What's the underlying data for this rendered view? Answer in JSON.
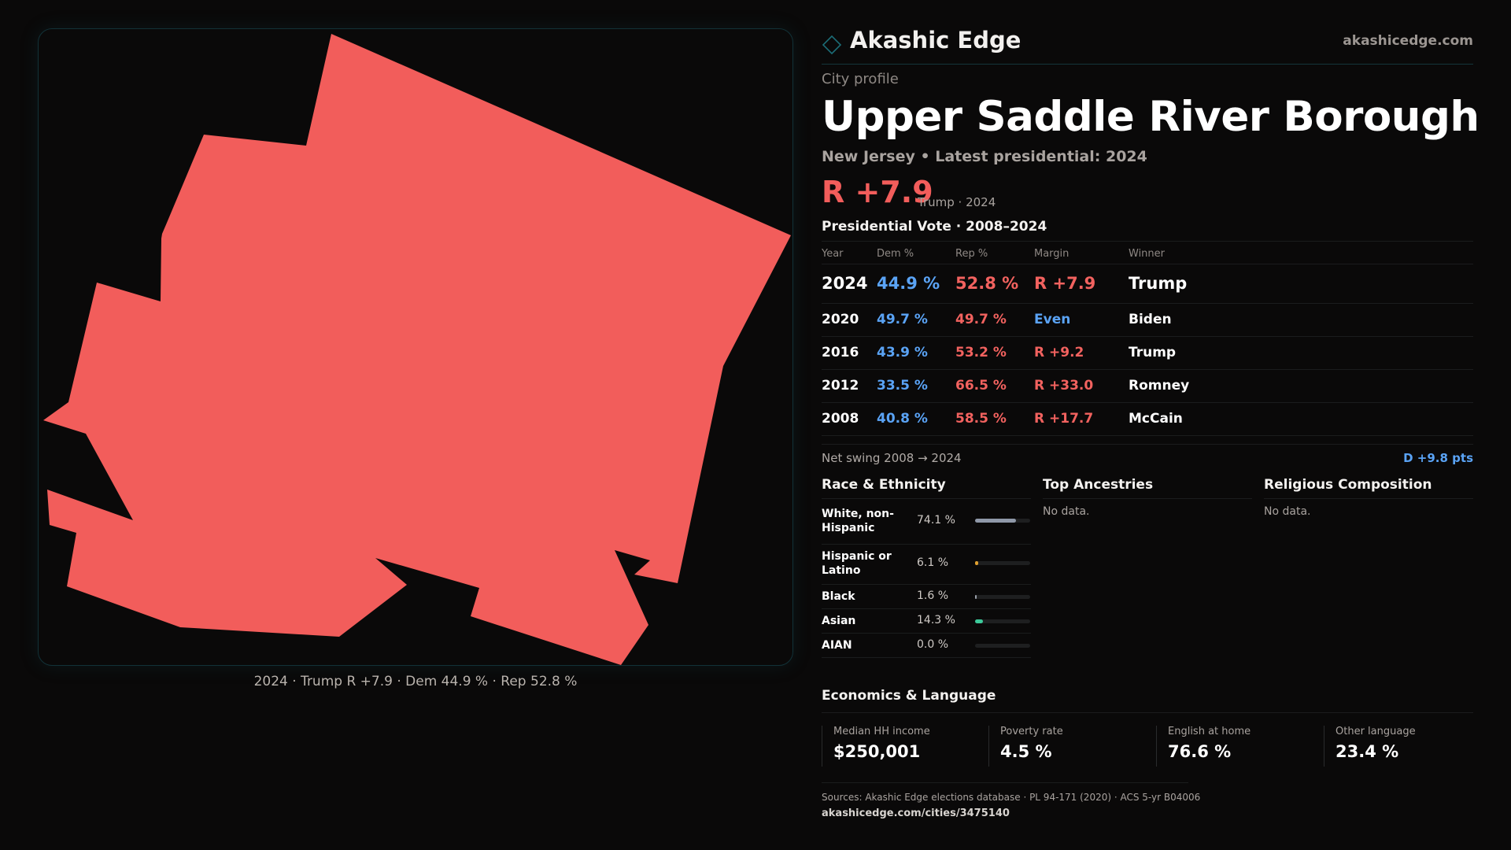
{
  "brand": {
    "name": "Akashic Edge",
    "site": "akashicedge.com",
    "logo_icon": "diamond-outline-icon"
  },
  "profile": {
    "kicker": "City profile",
    "city": "Upper Saddle River Borough",
    "subline": "New Jersey • Latest presidential: 2024",
    "margin": "R +7.9",
    "margin_note": "Trump · 2024"
  },
  "map": {
    "fill_color": "#f25d5b",
    "caption": "2024 · Trump R +7.9 · Dem 44.9 % · Rep 52.8 %"
  },
  "presidential": {
    "heading": "Presidential Vote · 2008–2024",
    "columns": [
      "Year",
      "Dem %",
      "Rep %",
      "Margin",
      "Winner"
    ],
    "rows": [
      {
        "year": "2024",
        "dem": "44.9 %",
        "rep": "52.8 %",
        "margin": "R +7.9",
        "winner": "Trump"
      },
      {
        "year": "2020",
        "dem": "49.7 %",
        "rep": "49.7 %",
        "margin": "Even",
        "winner": "Biden"
      },
      {
        "year": "2016",
        "dem": "43.9 %",
        "rep": "53.2 %",
        "margin": "R +9.2",
        "winner": "Trump"
      },
      {
        "year": "2012",
        "dem": "33.5 %",
        "rep": "66.5 %",
        "margin": "R +33.0",
        "winner": "Romney"
      },
      {
        "year": "2008",
        "dem": "40.8 %",
        "rep": "58.5 %",
        "margin": "R +17.7",
        "winner": "McCain"
      }
    ],
    "swing_label": "Net swing 2008 → 2024",
    "swing_value": "D +9.8 pts"
  },
  "race": {
    "heading": "Race & Ethnicity",
    "rows": [
      {
        "label": "White, non-Hispanic",
        "value": "74.1 %",
        "pct": 74.1,
        "color": "#8f98a8"
      },
      {
        "label": "Hispanic or Latino",
        "value": "6.1 %",
        "pct": 6.1,
        "color": "#e0a030"
      },
      {
        "label": "Black",
        "value": "1.6 %",
        "pct": 1.6,
        "color": "#9aa0aa"
      },
      {
        "label": "Asian",
        "value": "14.3 %",
        "pct": 14.3,
        "color": "#3cc99a"
      },
      {
        "label": "AIAN",
        "value": "0.0 %",
        "pct": 0.0,
        "color": "#9aa0aa"
      }
    ]
  },
  "ancestries": {
    "heading": "Top Ancestries",
    "empty": "No data."
  },
  "religion": {
    "heading": "Religious Composition",
    "empty": "No data."
  },
  "economics": {
    "heading": "Economics & Language",
    "stats": [
      {
        "label": "Median HH income",
        "value": "$250,001"
      },
      {
        "label": "Poverty rate",
        "value": "4.5 %"
      },
      {
        "label": "English at home",
        "value": "76.6 %"
      },
      {
        "label": "Other language",
        "value": "23.4 %"
      }
    ]
  },
  "footer": {
    "sources": "Sources: Akashic Edge elections database · PL 94-171 (2020) · ACS 5-yr B04006",
    "url": "akashicedge.com/cities/3475140"
  }
}
